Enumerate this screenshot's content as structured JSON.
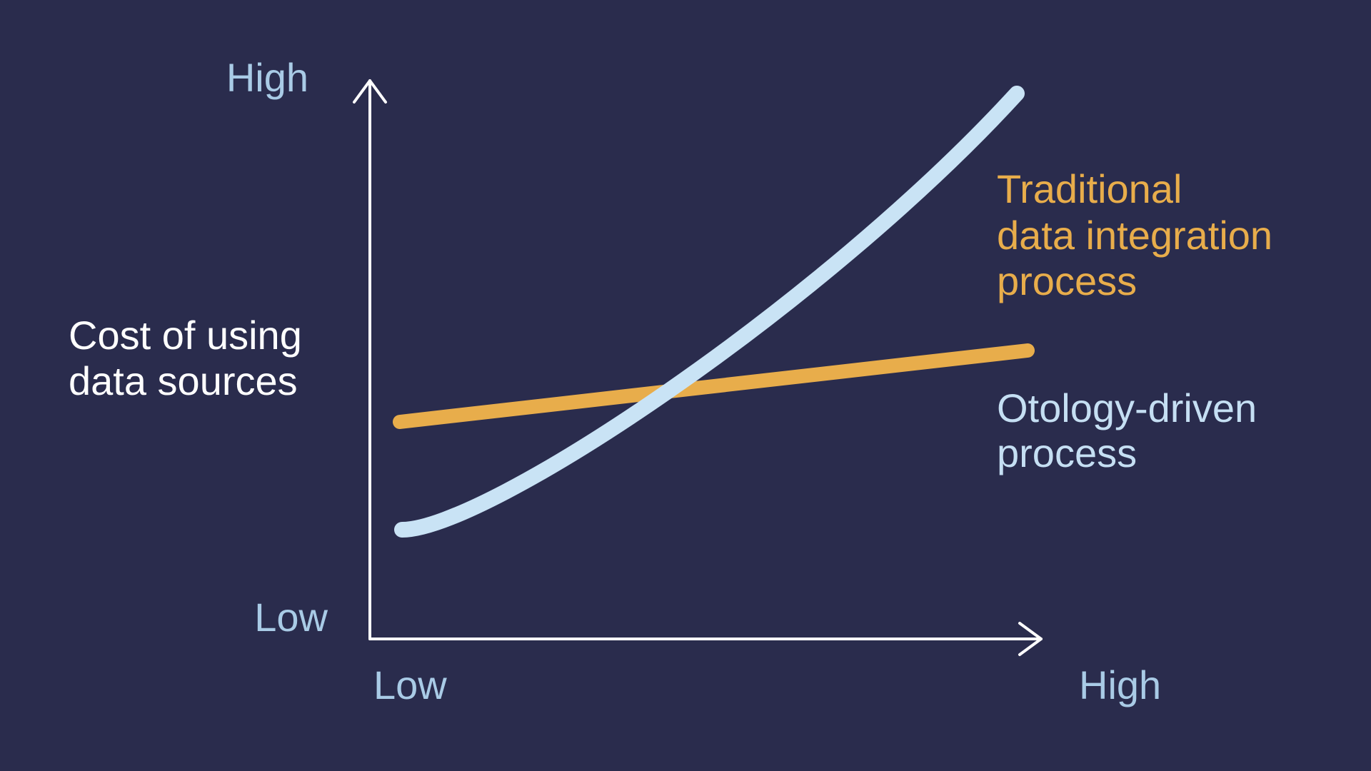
{
  "y_axis": {
    "title_lines": [
      "Cost of using",
      "data sources"
    ],
    "high": "High",
    "low": "Low"
  },
  "x_axis": {
    "low": "Low",
    "high": "High"
  },
  "curves": [
    {
      "label_lines": [
        "Traditional",
        "data integration",
        "process"
      ]
    },
    {
      "label_lines": [
        "Otology-driven",
        "process"
      ]
    }
  ]
}
